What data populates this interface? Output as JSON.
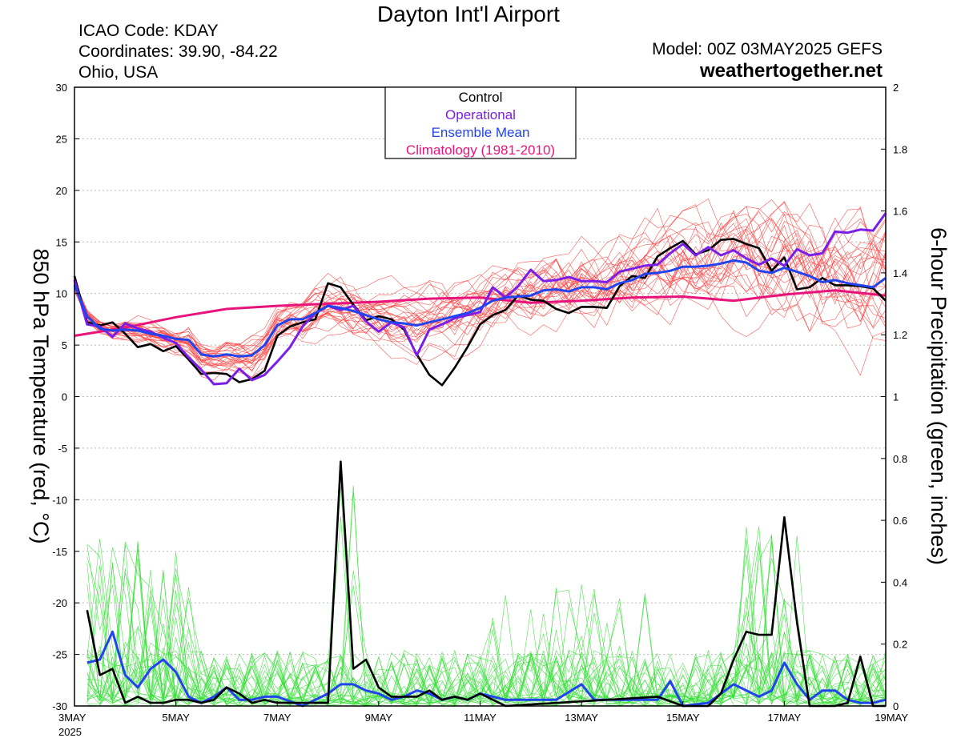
{
  "header": {
    "title": "Dayton Int'l Airport",
    "icao": "ICAO Code: KDAY",
    "coords": "Coordinates: 39.90, -84.22",
    "region": "Ohio, USA",
    "model": "Model: 00Z 03MAY2025 GEFS",
    "site": "weathertogether.net"
  },
  "colors": {
    "control": "#000000",
    "operational": "#7b1ee8",
    "ensemble_mean": "#2244ee",
    "climatology": "#e8147c",
    "members_temp": "#ff3c3c",
    "members_precip": "#33dd33",
    "site_link": "#1a9fe8"
  },
  "chart_data": {
    "type": "line",
    "ylabel_left": "850 hPa Temperature (red, °C)",
    "ylabel_right": "6-hour Precipitation (green, inches)",
    "ylim_left": [
      -30,
      30
    ],
    "ylim_right": [
      0,
      2
    ],
    "yticks_left": [
      "30",
      "25",
      "20",
      "15",
      "10",
      "5",
      "0",
      "-5",
      "-10",
      "-15",
      "-20",
      "-25",
      "-30"
    ],
    "yticks_right": [
      "2",
      "1.8",
      "1.6",
      "1.4",
      "1.2",
      "1",
      "0.8",
      "0.6",
      "0.4",
      "0.2",
      "0"
    ],
    "xlim": [
      0,
      16
    ],
    "xticks": [
      {
        "x": 0,
        "label": "3MAY",
        "sub": "2025"
      },
      {
        "x": 2,
        "label": "5MAY",
        "sub": ""
      },
      {
        "x": 4,
        "label": "7MAY",
        "sub": ""
      },
      {
        "x": 6,
        "label": "9MAY",
        "sub": ""
      },
      {
        "x": 8,
        "label": "11MAY",
        "sub": ""
      },
      {
        "x": 10,
        "label": "13MAY",
        "sub": ""
      },
      {
        "x": 12,
        "label": "15MAY",
        "sub": ""
      },
      {
        "x": 14,
        "label": "17MAY",
        "sub": ""
      },
      {
        "x": 16,
        "label": "19MAY",
        "sub": ""
      }
    ],
    "legend": [
      "Control",
      "Operational",
      "Ensemble Mean",
      "Climatology (1981-2010)"
    ],
    "legend_position": "top-center",
    "grid": "dashed-horizontal",
    "temperature": {
      "control": [
        [
          0,
          11.7
        ],
        [
          0.25,
          7.2
        ],
        [
          0.5,
          6.9
        ],
        [
          0.75,
          7.2
        ],
        [
          1,
          6.1
        ],
        [
          1.25,
          4.8
        ],
        [
          1.5,
          5.1
        ],
        [
          1.75,
          4.4
        ],
        [
          2,
          4.9
        ],
        [
          2.25,
          3.6
        ],
        [
          2.5,
          2.2
        ],
        [
          2.75,
          2.3
        ],
        [
          3,
          2.2
        ],
        [
          3.25,
          1.4
        ],
        [
          3.5,
          1.7
        ],
        [
          3.75,
          2.5
        ],
        [
          4,
          5.9
        ],
        [
          4.25,
          6.8
        ],
        [
          4.5,
          7.2
        ],
        [
          4.75,
          7.5
        ],
        [
          5,
          11
        ],
        [
          5.25,
          10.6
        ],
        [
          5.5,
          8.9
        ],
        [
          5.75,
          7.4
        ],
        [
          6,
          7.8
        ],
        [
          6.25,
          7.5
        ],
        [
          6.5,
          6.5
        ],
        [
          6.75,
          4.1
        ],
        [
          7,
          2.1
        ],
        [
          7.25,
          1.1
        ],
        [
          7.5,
          2.8
        ],
        [
          7.75,
          4.8
        ],
        [
          8,
          7
        ],
        [
          8.25,
          7.9
        ],
        [
          8.5,
          8.4
        ],
        [
          8.75,
          9.8
        ],
        [
          9,
          9.4
        ],
        [
          9.25,
          9.3
        ],
        [
          9.5,
          8.5
        ],
        [
          9.75,
          8.1
        ],
        [
          10,
          8.7
        ],
        [
          10.25,
          8.7
        ],
        [
          10.5,
          8.6
        ],
        [
          10.75,
          10.7
        ],
        [
          11,
          11.7
        ],
        [
          11.25,
          11.5
        ],
        [
          11.5,
          13.6
        ],
        [
          11.75,
          14.4
        ],
        [
          12,
          15.1
        ],
        [
          12.25,
          13.8
        ],
        [
          12.5,
          14.2
        ],
        [
          12.75,
          15.2
        ],
        [
          13,
          15.3
        ],
        [
          13.25,
          14.8
        ],
        [
          13.5,
          14.4
        ],
        [
          13.75,
          12.2
        ],
        [
          14,
          13.5
        ],
        [
          14.25,
          10.4
        ],
        [
          14.5,
          10.6
        ],
        [
          14.75,
          11.5
        ],
        [
          15,
          10.8
        ],
        [
          15.25,
          10.8
        ],
        [
          15.5,
          10.7
        ],
        [
          15.75,
          10.5
        ],
        [
          16,
          9.3
        ]
      ],
      "operational": [
        [
          0,
          11.3
        ],
        [
          0.25,
          7
        ],
        [
          0.5,
          6.8
        ],
        [
          0.75,
          5.8
        ],
        [
          1,
          7.1
        ],
        [
          1.25,
          6.6
        ],
        [
          1.5,
          6.3
        ],
        [
          1.75,
          5.7
        ],
        [
          2,
          5.2
        ],
        [
          2.25,
          3.8
        ],
        [
          2.5,
          2.6
        ],
        [
          2.75,
          1.2
        ],
        [
          3,
          1.3
        ],
        [
          3.25,
          2.7
        ],
        [
          3.5,
          1.6
        ],
        [
          3.75,
          2.1
        ],
        [
          4,
          3.4
        ],
        [
          4.25,
          4.8
        ],
        [
          4.5,
          6.8
        ],
        [
          4.75,
          8.1
        ],
        [
          5,
          8.8
        ],
        [
          5.25,
          8.4
        ],
        [
          5.5,
          8.8
        ],
        [
          5.75,
          7.3
        ],
        [
          6,
          6.3
        ],
        [
          6.25,
          7.2
        ],
        [
          6.5,
          6.7
        ],
        [
          6.75,
          4
        ],
        [
          7,
          6.5
        ],
        [
          7.25,
          7
        ],
        [
          7.5,
          7.6
        ],
        [
          7.75,
          7.9
        ],
        [
          8,
          8.2
        ],
        [
          8.25,
          10.6
        ],
        [
          8.5,
          9.6
        ],
        [
          8.75,
          10.7
        ],
        [
          9,
          12.3
        ],
        [
          9.25,
          11.2
        ],
        [
          9.5,
          11.3
        ],
        [
          9.75,
          11.6
        ],
        [
          10,
          11.2
        ],
        [
          10.25,
          11.2
        ],
        [
          10.5,
          11.1
        ],
        [
          10.75,
          12.1
        ],
        [
          11,
          12.4
        ],
        [
          11.25,
          12.7
        ],
        [
          11.5,
          12.8
        ],
        [
          11.75,
          13.9
        ],
        [
          12,
          14.8
        ],
        [
          12.25,
          13.7
        ],
        [
          12.5,
          14.5
        ],
        [
          12.75,
          13.7
        ],
        [
          13,
          14.2
        ],
        [
          13.25,
          13.4
        ],
        [
          13.5,
          12.8
        ],
        [
          13.75,
          13.4
        ],
        [
          14,
          12.7
        ],
        [
          14.25,
          14.3
        ],
        [
          14.5,
          13.7
        ],
        [
          14.75,
          13.9
        ],
        [
          15,
          16
        ],
        [
          15.25,
          15.9
        ],
        [
          15.5,
          16.2
        ],
        [
          15.75,
          16.1
        ],
        [
          16,
          17.8
        ]
      ],
      "ensemble_mean": [
        [
          0,
          10.8
        ],
        [
          0.25,
          7.8
        ],
        [
          0.5,
          6.6
        ],
        [
          0.75,
          6.4
        ],
        [
          1,
          6.5
        ],
        [
          1.25,
          6.4
        ],
        [
          1.5,
          6.1
        ],
        [
          1.75,
          5.9
        ],
        [
          2,
          5.6
        ],
        [
          2.25,
          5.5
        ],
        [
          2.5,
          4.1
        ],
        [
          2.75,
          3.9
        ],
        [
          3,
          4.1
        ],
        [
          3.25,
          3.9
        ],
        [
          3.5,
          4
        ],
        [
          3.75,
          5
        ],
        [
          4,
          6.9
        ],
        [
          4.25,
          7.5
        ],
        [
          4.5,
          7.5
        ],
        [
          4.75,
          8.1
        ],
        [
          5,
          8.8
        ],
        [
          5.25,
          8.6
        ],
        [
          5.5,
          8.3
        ],
        [
          5.75,
          7.9
        ],
        [
          6,
          7.5
        ],
        [
          6.25,
          7.2
        ],
        [
          6.5,
          7.1
        ],
        [
          6.75,
          6.9
        ],
        [
          7,
          7.2
        ],
        [
          7.25,
          7.5
        ],
        [
          7.5,
          7.8
        ],
        [
          7.75,
          8.1
        ],
        [
          8,
          8.6
        ],
        [
          8.25,
          9.3
        ],
        [
          8.5,
          9.6
        ],
        [
          8.75,
          9.7
        ],
        [
          9,
          9.8
        ],
        [
          9.25,
          10.3
        ],
        [
          9.5,
          10.4
        ],
        [
          9.75,
          10.2
        ],
        [
          10,
          10.6
        ],
        [
          10.25,
          10.6
        ],
        [
          10.5,
          10.4
        ],
        [
          10.75,
          11
        ],
        [
          11,
          11.3
        ],
        [
          11.25,
          11.9
        ],
        [
          11.5,
          12
        ],
        [
          11.75,
          12.2
        ],
        [
          12,
          12.6
        ],
        [
          12.25,
          12.6
        ],
        [
          12.5,
          12.7
        ],
        [
          12.75,
          12.9
        ],
        [
          13,
          13.2
        ],
        [
          13.25,
          13
        ],
        [
          13.5,
          12.2
        ],
        [
          13.75,
          12
        ],
        [
          14,
          12.5
        ],
        [
          14.25,
          12.1
        ],
        [
          14.5,
          11.7
        ],
        [
          14.75,
          11.1
        ],
        [
          15,
          11.3
        ],
        [
          15.25,
          11
        ],
        [
          15.5,
          10.8
        ],
        [
          15.75,
          10.6
        ],
        [
          16,
          11.5
        ]
      ],
      "climatology": [
        [
          0,
          5.9
        ],
        [
          1,
          6.7
        ],
        [
          2,
          7.7
        ],
        [
          3,
          8.5
        ],
        [
          4,
          8.8
        ],
        [
          5,
          9
        ],
        [
          6,
          9.2
        ],
        [
          7,
          9.5
        ],
        [
          8,
          9.6
        ],
        [
          9,
          9.1
        ],
        [
          10,
          9.3
        ],
        [
          11,
          9.6
        ],
        [
          12,
          9.7
        ],
        [
          13,
          9.3
        ],
        [
          14,
          9.9
        ],
        [
          15,
          10.3
        ],
        [
          16,
          9.8
        ]
      ]
    },
    "precipitation": {
      "control": [
        [
          0.25,
          0.31
        ],
        [
          0.5,
          0.1
        ],
        [
          0.75,
          0.12
        ],
        [
          1,
          0.01
        ],
        [
          1.25,
          0.03
        ],
        [
          1.5,
          0.01
        ],
        [
          1.75,
          0.01
        ],
        [
          2,
          0.02
        ],
        [
          2.25,
          0.02
        ],
        [
          2.5,
          0.01
        ],
        [
          2.75,
          0.02
        ],
        [
          3,
          0.06
        ],
        [
          3.25,
          0.04
        ],
        [
          3.5,
          0.01
        ],
        [
          3.75,
          0.02
        ],
        [
          4,
          0.01
        ],
        [
          4.5,
          0.01
        ],
        [
          5,
          0.01
        ],
        [
          5.25,
          0.79
        ],
        [
          5.5,
          0.12
        ],
        [
          5.75,
          0.15
        ],
        [
          6,
          0.06
        ],
        [
          6.25,
          0.03
        ],
        [
          6.5,
          0.03
        ],
        [
          6.75,
          0.03
        ],
        [
          7,
          0.05
        ],
        [
          7.25,
          0.02
        ],
        [
          7.5,
          0.03
        ],
        [
          7.75,
          0.02
        ],
        [
          8,
          0.04
        ],
        [
          8.5,
          0
        ],
        [
          11.5,
          0.03
        ],
        [
          12,
          0
        ],
        [
          12.5,
          0
        ],
        [
          12.75,
          0.04
        ],
        [
          13,
          0.15
        ],
        [
          13.25,
          0.24
        ],
        [
          13.5,
          0.23
        ],
        [
          13.75,
          0.23
        ],
        [
          14,
          0.61
        ],
        [
          14.25,
          0.27
        ],
        [
          14.5,
          0
        ],
        [
          15,
          0
        ],
        [
          15.25,
          0.01
        ],
        [
          15.5,
          0.16
        ],
        [
          15.75,
          0
        ],
        [
          16,
          0
        ]
      ],
      "ensemble_mean": [
        [
          0.25,
          0.14
        ],
        [
          0.5,
          0.15
        ],
        [
          0.75,
          0.24
        ],
        [
          1,
          0.1
        ],
        [
          1.25,
          0.06
        ],
        [
          1.5,
          0.12
        ],
        [
          1.75,
          0.15
        ],
        [
          2,
          0.11
        ],
        [
          2.25,
          0.03
        ],
        [
          2.5,
          0.01
        ],
        [
          2.75,
          0.03
        ],
        [
          3,
          0.06
        ],
        [
          3.25,
          0.02
        ],
        [
          3.5,
          0.02
        ],
        [
          3.75,
          0.03
        ],
        [
          4,
          0.03
        ],
        [
          4.5,
          0
        ],
        [
          5,
          0.04
        ],
        [
          5.25,
          0.07
        ],
        [
          5.5,
          0.07
        ],
        [
          5.75,
          0.05
        ],
        [
          6,
          0.04
        ],
        [
          6.25,
          0.02
        ],
        [
          6.5,
          0.03
        ],
        [
          6.75,
          0.05
        ],
        [
          7,
          0.04
        ],
        [
          7.25,
          0.02
        ],
        [
          7.5,
          0.03
        ],
        [
          7.75,
          0.02
        ],
        [
          8,
          0.04
        ],
        [
          8.5,
          0.02
        ],
        [
          9,
          0.02
        ],
        [
          9.5,
          0.02
        ],
        [
          10,
          0.07
        ],
        [
          10.25,
          0.02
        ],
        [
          10.5,
          0.02
        ],
        [
          11,
          0.02
        ],
        [
          11.5,
          0.02
        ],
        [
          11.75,
          0.08
        ],
        [
          12,
          0
        ],
        [
          12.5,
          0.01
        ],
        [
          13,
          0.07
        ],
        [
          13.5,
          0.03
        ],
        [
          13.75,
          0.05
        ],
        [
          14,
          0.14
        ],
        [
          14.25,
          0.07
        ],
        [
          14.5,
          0.02
        ],
        [
          14.75,
          0.05
        ],
        [
          15,
          0.05
        ],
        [
          15.25,
          0.02
        ],
        [
          15.5,
          0.01
        ],
        [
          15.75,
          0.01
        ],
        [
          16,
          0.02
        ]
      ]
    }
  }
}
